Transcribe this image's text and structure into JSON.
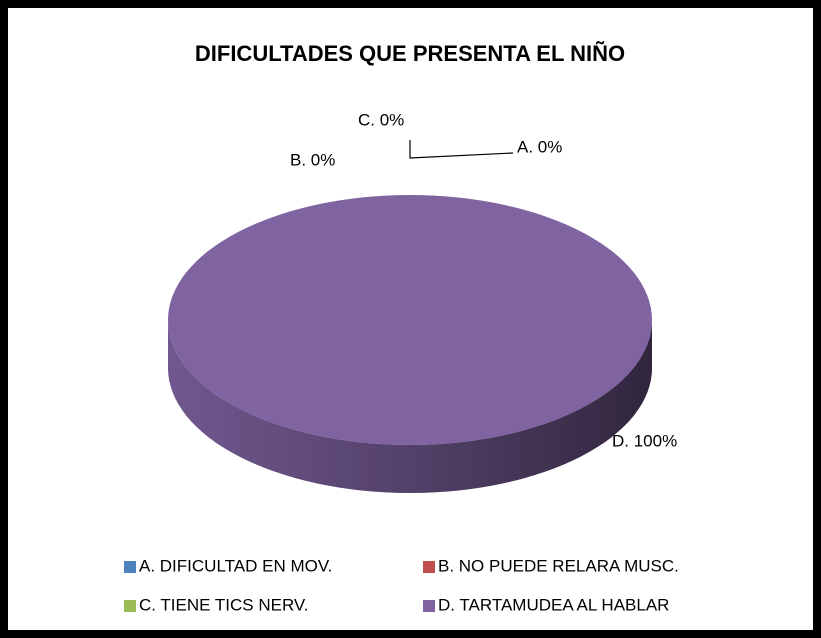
{
  "chart_data": {
    "type": "pie",
    "title": "DIFICULTADES QUE PRESENTA EL NIÑO",
    "categories": [
      "A. DIFICULTAD EN MOV.",
      "B. NO PUEDE RELARA MUSC.",
      "C. TIENE TICS NERV.",
      "D. TARTAMUDEA AL HABLAR"
    ],
    "values": [
      0,
      0,
      0,
      100
    ],
    "value_labels": [
      "A. 0%",
      "B. 0%",
      "C. 0%",
      "D. 100%"
    ],
    "colors": [
      "#4f81bd",
      "#c0504d",
      "#9bbb59",
      "#8064a2"
    ],
    "legend": "bottom"
  }
}
